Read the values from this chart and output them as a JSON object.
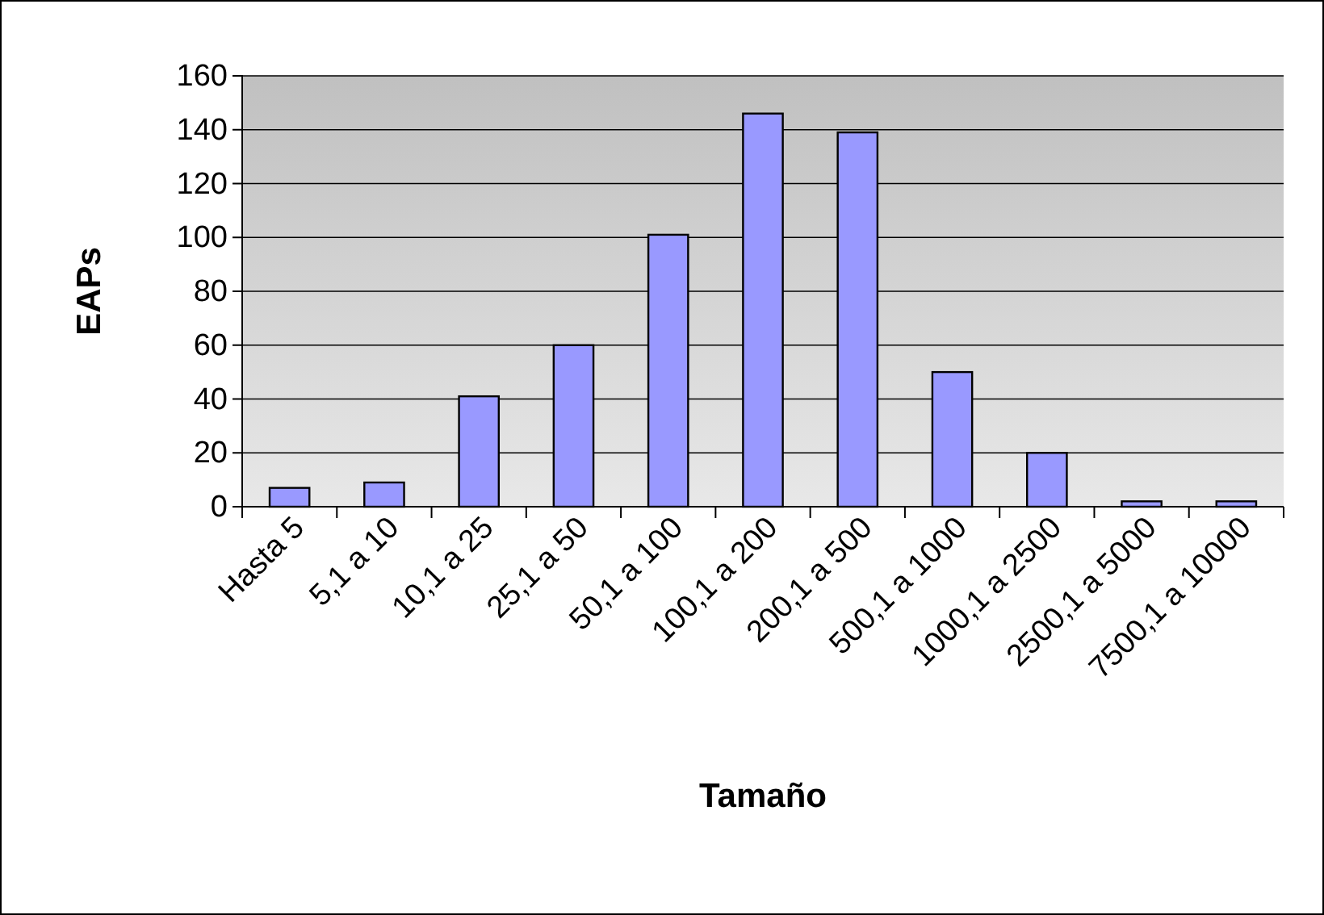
{
  "chart_data": {
    "type": "bar",
    "xlabel": "Tamaño",
    "ylabel": "EAPs",
    "categories": [
      "Hasta 5",
      "5,1 a 10",
      "10,1 a 25",
      "25,1 a 50",
      "50,1 a 100",
      "100,1 a 200",
      "200,1 a 500",
      "500,1 a 1000",
      "1000,1 a 2500",
      "2500,1 a 5000",
      "7500,1 a 10000"
    ],
    "values": [
      7,
      9,
      41,
      60,
      101,
      146,
      139,
      50,
      20,
      2,
      2
    ],
    "color": "#9999ff",
    "ylim": [
      0,
      160
    ],
    "yticks": [
      0,
      20,
      40,
      60,
      80,
      100,
      120,
      140,
      160
    ],
    "grid": "y"
  }
}
